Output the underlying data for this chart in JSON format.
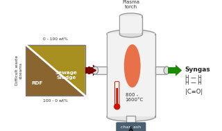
{
  "bg_color": "#ffffff",
  "rdf_color": "#8B6530",
  "sludge_color": "#A89020",
  "reactor_fill": "#f2f2f2",
  "reactor_edge": "#999999",
  "plasma_color": "#E8663A",
  "thermo_color": "#cc1100",
  "arrow_in_color": "#7a0000",
  "arrow_out_color": "#1a8a00",
  "char_box_color": "#4a6070",
  "char_text_color": "#ffffff",
  "text_top": "0 - 100 wt%",
  "text_bottom": "100 - 0 wt%",
  "text_sewage": "Sewage\nSludge",
  "text_rdf": "RDF",
  "text_plasma": "Plasma\ntorch",
  "text_syngas": "Syngas",
  "text_temp": "800 -\n1600°C",
  "text_char": "char, ash",
  "text_waste": "Difficult waste\nstreams",
  "text_h2_1": "H — H",
  "text_h2_2": "H — H",
  "text_co": "|C≡O|"
}
